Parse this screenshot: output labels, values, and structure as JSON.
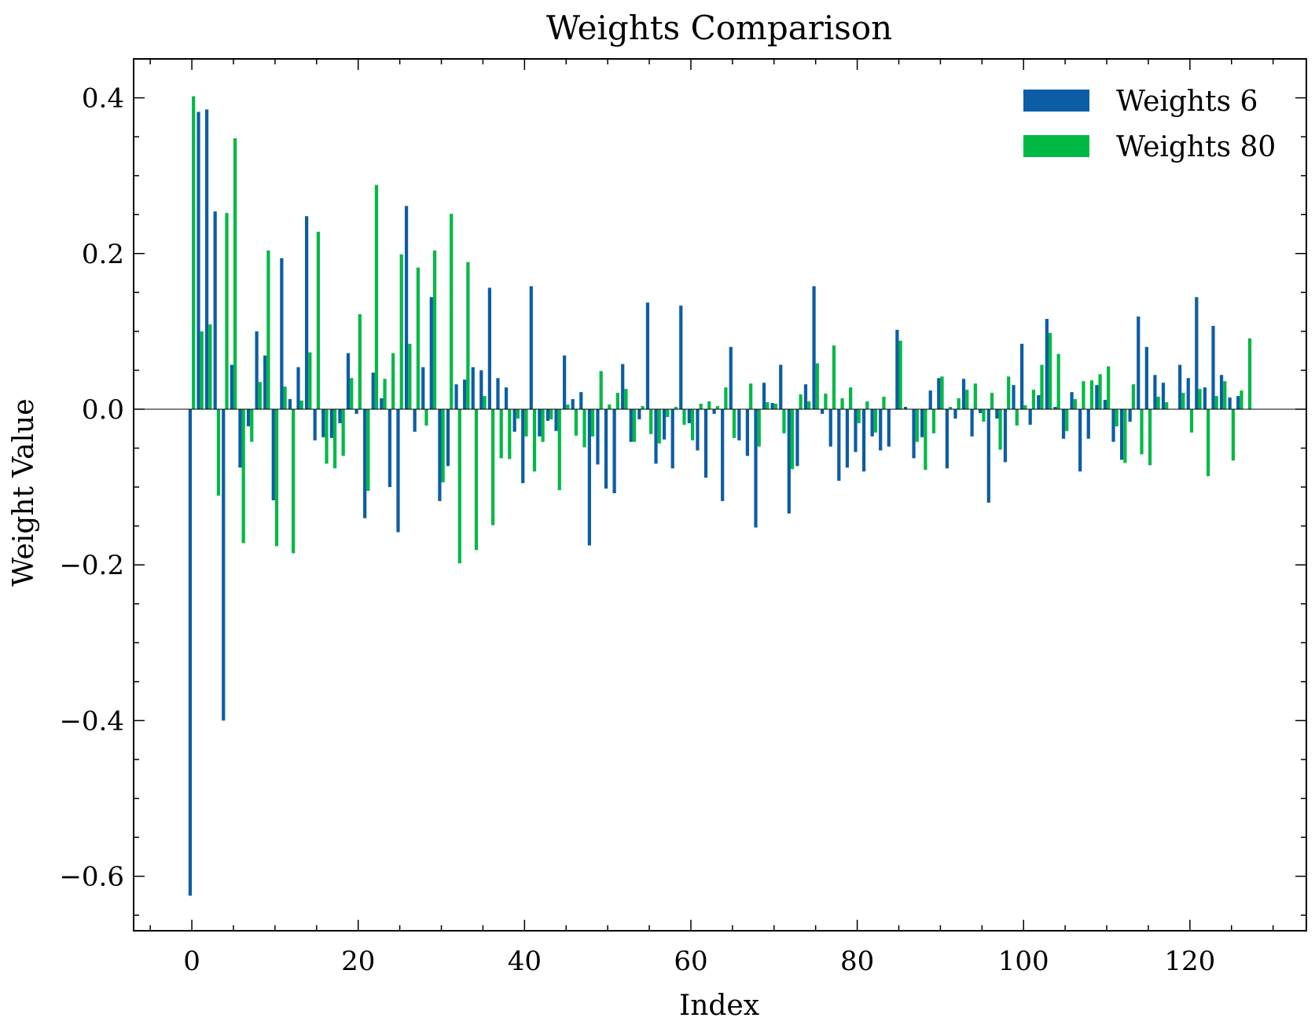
{
  "chart_data": {
    "type": "bar",
    "title": "Weights Comparison",
    "xlabel": "Index",
    "ylabel": "Weight Value",
    "xlim": [
      -7,
      134
    ],
    "ylim": [
      -0.67,
      0.45
    ],
    "x_ticks": [
      0,
      20,
      40,
      60,
      80,
      100,
      120
    ],
    "x_tick_labels": [
      "0",
      "20",
      "40",
      "60",
      "80",
      "100",
      "120"
    ],
    "y_ticks": [
      -0.6,
      -0.4,
      -0.2,
      0.0,
      0.2,
      0.4
    ],
    "y_tick_labels": [
      "−0.6",
      "−0.4",
      "−0.2",
      "0.0",
      "0.2",
      "0.4"
    ],
    "grid": false,
    "legend_position": "top-right",
    "x": [
      0,
      1,
      2,
      3,
      4,
      5,
      6,
      7,
      8,
      9,
      10,
      11,
      12,
      13,
      14,
      15,
      16,
      17,
      18,
      19,
      20,
      21,
      22,
      23,
      24,
      25,
      26,
      27,
      28,
      29,
      30,
      31,
      32,
      33,
      34,
      35,
      36,
      37,
      38,
      39,
      40,
      41,
      42,
      43,
      44,
      45,
      46,
      47,
      48,
      49,
      50,
      51,
      52,
      53,
      54,
      55,
      56,
      57,
      58,
      59,
      60,
      61,
      62,
      63,
      64,
      65,
      66,
      67,
      68,
      69,
      70,
      71,
      72,
      73,
      74,
      75,
      76,
      77,
      78,
      79,
      80,
      81,
      82,
      83,
      84,
      85,
      86,
      87,
      88,
      89,
      90,
      91,
      92,
      93,
      94,
      95,
      96,
      97,
      98,
      99,
      100,
      101,
      102,
      103,
      104,
      105,
      106,
      107,
      108,
      109,
      110,
      111,
      112,
      113,
      114,
      115,
      116,
      117,
      118,
      119,
      120,
      121,
      122,
      123,
      124,
      125,
      126,
      127
    ],
    "series": [
      {
        "name": "Weights 6",
        "color": "#0C5DA5",
        "values": [
          -0.625,
          0.382,
          0.385,
          0.254,
          -0.4,
          0.057,
          -0.075,
          -0.022,
          0.1,
          0.069,
          -0.117,
          0.194,
          0.013,
          0.054,
          0.248,
          -0.04,
          -0.036,
          -0.037,
          -0.018,
          0.072,
          -0.006,
          -0.14,
          0.047,
          0.014,
          -0.1,
          -0.158,
          0.261,
          -0.029,
          0.054,
          0.144,
          -0.118,
          -0.073,
          0.032,
          0.038,
          0.054,
          0.05,
          0.156,
          0.04,
          0.028,
          -0.029,
          -0.095,
          0.158,
          -0.035,
          -0.015,
          -0.028,
          0.069,
          0.013,
          0.022,
          -0.175,
          -0.071,
          -0.102,
          -0.108,
          0.058,
          -0.042,
          -0.013,
          0.137,
          -0.07,
          -0.039,
          -0.076,
          0.133,
          -0.018,
          -0.053,
          -0.088,
          -0.006,
          -0.118,
          0.08,
          -0.04,
          -0.06,
          -0.152,
          0.034,
          0.008,
          0.057,
          -0.134,
          -0.073,
          0.032,
          0.158,
          -0.006,
          -0.048,
          -0.092,
          -0.075,
          -0.055,
          -0.08,
          -0.035,
          -0.053,
          -0.048,
          0.102,
          0.003,
          -0.063,
          -0.036,
          0.024,
          0.04,
          -0.076,
          -0.012,
          0.039,
          -0.035,
          -0.005,
          -0.12,
          -0.012,
          -0.068,
          0.031,
          0.084,
          -0.02,
          0.018,
          0.116,
          0.003,
          -0.038,
          0.022,
          -0.08,
          -0.038,
          0.031,
          0.012,
          -0.042,
          -0.065,
          -0.016,
          0.119,
          0.08,
          0.044,
          0.034,
          0.0,
          0.057,
          0.04,
          0.144,
          0.028,
          0.107,
          0.044,
          0.015,
          0.017,
          0.0
        ]
      },
      {
        "name": "Weights 80",
        "color": "#00B945",
        "values": [
          0.402,
          0.1,
          0.109,
          -0.111,
          0.252,
          0.348,
          -0.172,
          -0.042,
          0.035,
          0.204,
          -0.176,
          0.029,
          -0.185,
          0.011,
          0.073,
          0.228,
          -0.07,
          -0.076,
          -0.06,
          0.04,
          0.122,
          -0.105,
          0.288,
          0.039,
          0.072,
          0.199,
          0.084,
          0.182,
          -0.021,
          0.204,
          -0.094,
          0.251,
          -0.198,
          0.189,
          -0.181,
          0.017,
          -0.149,
          -0.063,
          -0.064,
          -0.012,
          -0.035,
          -0.08,
          -0.042,
          -0.013,
          -0.104,
          0.006,
          -0.034,
          -0.049,
          -0.035,
          0.049,
          0.006,
          0.021,
          0.026,
          -0.042,
          0.004,
          -0.032,
          -0.044,
          -0.01,
          0.003,
          -0.02,
          -0.04,
          0.007,
          0.01,
          0.004,
          0.028,
          -0.037,
          0.0,
          0.033,
          -0.048,
          0.009,
          0.007,
          -0.031,
          -0.077,
          0.019,
          0.01,
          0.059,
          0.02,
          0.082,
          0.014,
          0.028,
          -0.018,
          0.01,
          -0.03,
          0.016,
          0.0,
          0.088,
          0.0,
          -0.042,
          -0.078,
          -0.031,
          0.042,
          0.003,
          0.014,
          0.025,
          0.033,
          -0.016,
          0.021,
          -0.052,
          0.042,
          -0.021,
          0.005,
          0.025,
          0.057,
          0.098,
          0.071,
          -0.028,
          0.013,
          0.036,
          0.037,
          0.045,
          0.055,
          -0.022,
          -0.069,
          0.032,
          -0.058,
          -0.072,
          0.016,
          0.009,
          0.0,
          0.021,
          -0.03,
          0.026,
          -0.086,
          0.017,
          0.036,
          -0.066,
          0.024,
          0.091
        ]
      }
    ]
  }
}
